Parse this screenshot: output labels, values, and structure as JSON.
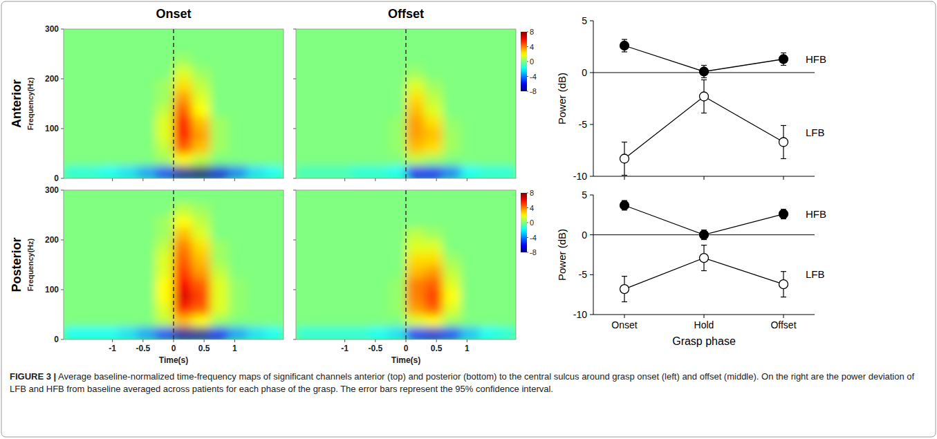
{
  "chart_data": [
    {
      "type": "heatmap",
      "title": "Onset",
      "y_label": "Frequency(Hz)",
      "xlim": [
        -1.8,
        1.8
      ],
      "ylim": [
        0,
        300
      ],
      "xticks": [
        -1,
        -0.5,
        0,
        0.5,
        1
      ],
      "yticks": [
        0,
        100,
        200,
        300
      ],
      "tick_labels": "y",
      "event_time": 0,
      "x_bins": [
        -1.8,
        -1.5,
        -1.2,
        -0.9,
        -0.6,
        -0.3,
        0,
        0.3,
        0.6,
        0.9,
        1.2,
        1.5,
        1.8
      ],
      "y_bins": [
        0,
        25,
        50,
        75,
        100,
        125,
        150,
        175,
        200,
        225,
        250,
        275,
        300
      ],
      "cells": [
        [
          -1.5,
          -1.5,
          -2,
          -2.5,
          -3.5,
          -5,
          -7.5,
          -8,
          -6.5,
          -4,
          -2.5,
          -2
        ],
        [
          0,
          0,
          0,
          0,
          0,
          0.5,
          2,
          1,
          0,
          0,
          0,
          0
        ],
        [
          0,
          0,
          0,
          0,
          0,
          1,
          4.5,
          3,
          0.5,
          0,
          0,
          0
        ],
        [
          0,
          0,
          0,
          0,
          0,
          1.5,
          5.5,
          3.5,
          0.5,
          0,
          0,
          0
        ],
        [
          0,
          0,
          0,
          0,
          0,
          1.5,
          5.5,
          3,
          0.5,
          0,
          0,
          0
        ],
        [
          0,
          0,
          0,
          0,
          0,
          1,
          4.5,
          2,
          0,
          0,
          0,
          0
        ],
        [
          0,
          0,
          0,
          0,
          0,
          0.5,
          3.5,
          1.5,
          0,
          0,
          0,
          0
        ],
        [
          0,
          0,
          0,
          0,
          0,
          0.5,
          2.5,
          1,
          0,
          0,
          0,
          0
        ],
        [
          0,
          0,
          0,
          0,
          0,
          0,
          1.5,
          0.5,
          0,
          0,
          0,
          0
        ],
        [
          0,
          0,
          0,
          0,
          0,
          0,
          0.5,
          0,
          0,
          0,
          0,
          0
        ],
        [
          0,
          0,
          0,
          0,
          0,
          0,
          0,
          0,
          0,
          0,
          0,
          0
        ],
        [
          0,
          0,
          0,
          0,
          0,
          0,
          0,
          0,
          0,
          0,
          0,
          0
        ]
      ]
    },
    {
      "type": "heatmap",
      "title": "Offset",
      "xlim": [
        -1.8,
        1.8
      ],
      "ylim": [
        0,
        300
      ],
      "xticks": [
        -1,
        -0.5,
        0,
        0.5,
        1
      ],
      "yticks": [
        0,
        100,
        200,
        300
      ],
      "tick_labels": false,
      "event_time": 0,
      "x_bins": [
        -1.8,
        -1.5,
        -1.2,
        -0.9,
        -0.6,
        -0.3,
        0,
        0.3,
        0.6,
        0.9,
        1.2,
        1.5,
        1.8
      ],
      "y_bins": [
        0,
        25,
        50,
        75,
        100,
        125,
        150,
        175,
        200,
        225,
        250,
        275,
        300
      ],
      "cells": [
        [
          -1,
          -1,
          -1,
          -1.5,
          -1.5,
          -2,
          -6,
          -6,
          -4,
          -2,
          -1.5,
          -1.5
        ],
        [
          0,
          0,
          0,
          0,
          0,
          0,
          1,
          0.5,
          0,
          0,
          0,
          0
        ],
        [
          0,
          0,
          0,
          0,
          0,
          0.3,
          3,
          2.5,
          0.5,
          0,
          0,
          0
        ],
        [
          0,
          0,
          0,
          0,
          0,
          0.3,
          3.5,
          3,
          0.5,
          0,
          0,
          0
        ],
        [
          0,
          0,
          0,
          0,
          0,
          0.3,
          3.5,
          2.5,
          0.3,
          0,
          0,
          0
        ],
        [
          0,
          0,
          0,
          0,
          0,
          0,
          3,
          1.5,
          0,
          0,
          0,
          0
        ],
        [
          0,
          0,
          0,
          0,
          0,
          0,
          2.5,
          1,
          0,
          0,
          0,
          0
        ],
        [
          0,
          0,
          0,
          0,
          0,
          0,
          1.5,
          0.5,
          0,
          0,
          0,
          0
        ],
        [
          0,
          0,
          0,
          0,
          0,
          0,
          0.5,
          0,
          0,
          0,
          0,
          0
        ],
        [
          0,
          0,
          0,
          0,
          0,
          0,
          0,
          0,
          0,
          0,
          0,
          0
        ],
        [
          0,
          0,
          0,
          0,
          0,
          0,
          0,
          0,
          0,
          0,
          0,
          0
        ],
        [
          0,
          0,
          0,
          0,
          0,
          0,
          0,
          0,
          0,
          0,
          0,
          0
        ]
      ],
      "colorbar": {
        "range": [
          -8,
          8
        ],
        "ticks": [
          8,
          4,
          0,
          -4,
          -8
        ]
      }
    },
    {
      "type": "heatmap",
      "x_label": "Time(s)",
      "y_label": "Frequency(Hz)",
      "xlim": [
        -1.8,
        1.8
      ],
      "ylim": [
        0,
        300
      ],
      "xticks": [
        -1,
        -0.5,
        0,
        0.5,
        1
      ],
      "yticks": [
        0,
        100,
        200,
        300
      ],
      "tick_labels": true,
      "event_time": 0,
      "x_bins": [
        -1.8,
        -1.5,
        -1.2,
        -0.9,
        -0.6,
        -0.3,
        0,
        0.3,
        0.6,
        0.9,
        1.2,
        1.5,
        1.8
      ],
      "y_bins": [
        0,
        25,
        50,
        75,
        100,
        125,
        150,
        175,
        200,
        225,
        250,
        275,
        300
      ],
      "cells": [
        [
          -2,
          -2,
          -2,
          -2.5,
          -3.5,
          -5,
          -7.5,
          -7.5,
          -6,
          -3.5,
          -2.5,
          -2
        ],
        [
          0,
          0,
          0,
          0,
          0,
          1,
          3,
          2,
          0.5,
          0,
          0,
          0
        ],
        [
          0,
          0,
          0,
          0,
          0,
          1.5,
          5.5,
          4.5,
          1.5,
          0.3,
          0,
          0
        ],
        [
          0,
          0,
          0,
          0,
          0,
          2,
          6.5,
          5,
          1.5,
          0.3,
          0,
          0
        ],
        [
          0,
          0,
          0,
          0,
          0,
          2,
          6,
          4.5,
          1.5,
          0.3,
          0,
          0
        ],
        [
          0,
          0,
          0,
          0,
          0,
          1.5,
          5,
          3.5,
          1,
          0,
          0,
          0
        ],
        [
          0,
          0,
          0,
          0,
          0,
          1.5,
          4.5,
          3,
          0.5,
          0,
          0,
          0
        ],
        [
          0,
          0,
          0,
          0,
          0,
          1,
          4,
          2.5,
          0.5,
          0,
          0,
          0
        ],
        [
          0,
          0,
          0,
          0,
          0,
          0.5,
          3,
          1.5,
          0,
          0,
          0,
          0
        ],
        [
          0,
          0,
          0,
          0,
          0,
          0.5,
          2,
          1,
          0,
          0,
          0,
          0
        ],
        [
          0,
          0,
          0,
          0,
          0,
          0,
          1,
          0.5,
          0,
          0,
          0,
          0
        ],
        [
          0,
          0,
          0,
          0,
          0,
          0,
          0,
          0,
          0,
          0,
          0,
          0
        ]
      ]
    },
    {
      "type": "heatmap",
      "x_label": "Time(s)",
      "xlim": [
        -1.8,
        1.8
      ],
      "ylim": [
        0,
        300
      ],
      "xticks": [
        -1,
        -0.5,
        0,
        0.5,
        1
      ],
      "yticks": [
        0,
        100,
        200,
        300
      ],
      "tick_labels": "x",
      "event_time": 0,
      "x_bins": [
        -1.8,
        -1.5,
        -1.2,
        -0.9,
        -0.6,
        -0.3,
        0,
        0.3,
        0.6,
        0.9,
        1.2,
        1.5,
        1.8
      ],
      "y_bins": [
        0,
        25,
        50,
        75,
        100,
        125,
        150,
        175,
        200,
        225,
        250,
        275,
        300
      ],
      "cells": [
        [
          -1.5,
          -1.5,
          -1.5,
          -1.5,
          -2,
          -2.5,
          -5.5,
          -6.5,
          -5,
          -3,
          -2,
          -1.5
        ],
        [
          0,
          0,
          0,
          0,
          0,
          0,
          1.5,
          2,
          0.5,
          0,
          0,
          0
        ],
        [
          0,
          0,
          0,
          0,
          0,
          0.3,
          3.5,
          4.5,
          1.5,
          0,
          0,
          0
        ],
        [
          0,
          0,
          0,
          0,
          0,
          0.3,
          4,
          5,
          2,
          0,
          0,
          0
        ],
        [
          0,
          0,
          0,
          0,
          0,
          0.3,
          4,
          4.5,
          1.5,
          0,
          0,
          0
        ],
        [
          0,
          0,
          0,
          0,
          0,
          0,
          3,
          3.5,
          1,
          0,
          0,
          0
        ],
        [
          0,
          0,
          0,
          0,
          0,
          0,
          2.5,
          2.5,
          0.5,
          0,
          0,
          0
        ],
        [
          0,
          0,
          0,
          0,
          0,
          0,
          1.5,
          1.5,
          0,
          0,
          0,
          0
        ],
        [
          0,
          0,
          0,
          0,
          0,
          0,
          1,
          0.5,
          0,
          0,
          0,
          0
        ],
        [
          0,
          0,
          0,
          0,
          0,
          0,
          0,
          0,
          0,
          0,
          0,
          0
        ],
        [
          0,
          0,
          0,
          0,
          0,
          0,
          0,
          0,
          0,
          0,
          0,
          0
        ],
        [
          0,
          0,
          0,
          0,
          0,
          0,
          0,
          0,
          0,
          0,
          0,
          0
        ]
      ],
      "colorbar": {
        "range": [
          -8,
          8
        ],
        "ticks": [
          8,
          4,
          0,
          -4,
          -8
        ]
      }
    },
    {
      "type": "line",
      "y_label": "Power (dB)",
      "categories": [
        "Onset",
        "Hold",
        "Offset"
      ],
      "ylim": [
        -10,
        5
      ],
      "yticks": [
        -10,
        -5,
        0,
        5
      ],
      "tick_labels": "y",
      "series": [
        {
          "name": "HFB",
          "color": "#000000",
          "marker": "filled",
          "values": [
            2.6,
            0.1,
            1.3
          ],
          "errors": [
            0.6,
            0.6,
            0.6
          ]
        },
        {
          "name": "LFB",
          "color": "#000000",
          "marker": "open",
          "values": [
            -8.3,
            -2.3,
            -6.7
          ],
          "errors": [
            1.6,
            1.6,
            1.6
          ]
        }
      ]
    },
    {
      "type": "line",
      "y_label": "Power (dB)",
      "x_label": "Grasp phase",
      "categories": [
        "Onset",
        "Hold",
        "Offset"
      ],
      "ylim": [
        -10,
        5
      ],
      "yticks": [
        -10,
        -5,
        0,
        5
      ],
      "tick_labels": true,
      "series": [
        {
          "name": "HFB",
          "color": "#000000",
          "marker": "filled",
          "values": [
            3.7,
            0.0,
            2.6
          ],
          "errors": [
            0.6,
            0.6,
            0.6
          ]
        },
        {
          "name": "LFB",
          "color": "#000000",
          "marker": "open",
          "values": [
            -6.8,
            -2.9,
            -6.2
          ],
          "errors": [
            1.6,
            1.6,
            1.6
          ]
        }
      ]
    }
  ],
  "figure": {
    "row_labels": [
      "Anterior",
      "Posterior"
    ]
  },
  "caption": {
    "label": "FIGURE 3 |",
    "text": "Average baseline-normalized time-frequency maps of significant channels anterior (top) and posterior (bottom) to the central sulcus around grasp onset (left) and offset (middle). On the right are the power deviation of LFB and HFB from baseline averaged across patients for each phase of the grasp. The error bars represent the 95% confidence interval."
  }
}
